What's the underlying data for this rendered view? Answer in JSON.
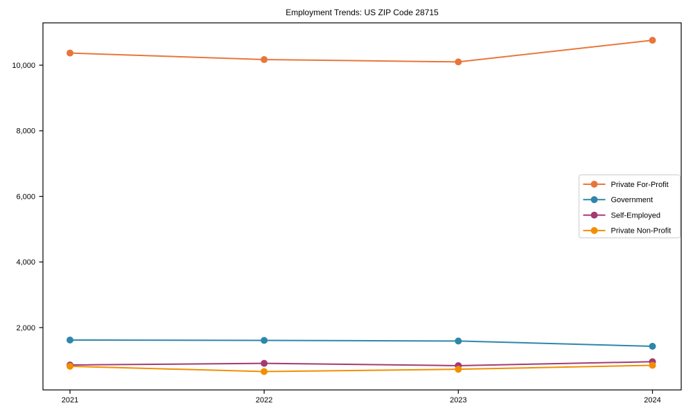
{
  "page": {
    "background": "#ffffff"
  },
  "chart_data": {
    "type": "line",
    "title": "Employment Trends: US ZIP Code 28715",
    "xlabel": "",
    "ylabel": "",
    "x": [
      2021,
      2022,
      2023,
      2024
    ],
    "x_tick_labels": [
      "2021",
      "2022",
      "2023",
      "2024"
    ],
    "y_tick_values": [
      2000,
      4000,
      6000,
      8000,
      10000
    ],
    "y_tick_labels": [
      "2,000",
      "4,000",
      "6,000",
      "8,000",
      "10,000"
    ],
    "ylim": [
      100,
      11290
    ],
    "grid": false,
    "legend_position": "center-right",
    "series": [
      {
        "name": "Private For-Profit",
        "color": "#e8763b",
        "marker": "circle",
        "values": [
          10370,
          10170,
          10100,
          10760
        ]
      },
      {
        "name": "Government",
        "color": "#2e86ab",
        "marker": "circle",
        "values": [
          1620,
          1610,
          1590,
          1430
        ]
      },
      {
        "name": "Self-Employed",
        "color": "#a23b72",
        "marker": "circle",
        "values": [
          860,
          910,
          840,
          960
        ]
      },
      {
        "name": "Private Non-Profit",
        "color": "#f18f01",
        "marker": "circle",
        "values": [
          820,
          660,
          730,
          850
        ]
      }
    ]
  }
}
